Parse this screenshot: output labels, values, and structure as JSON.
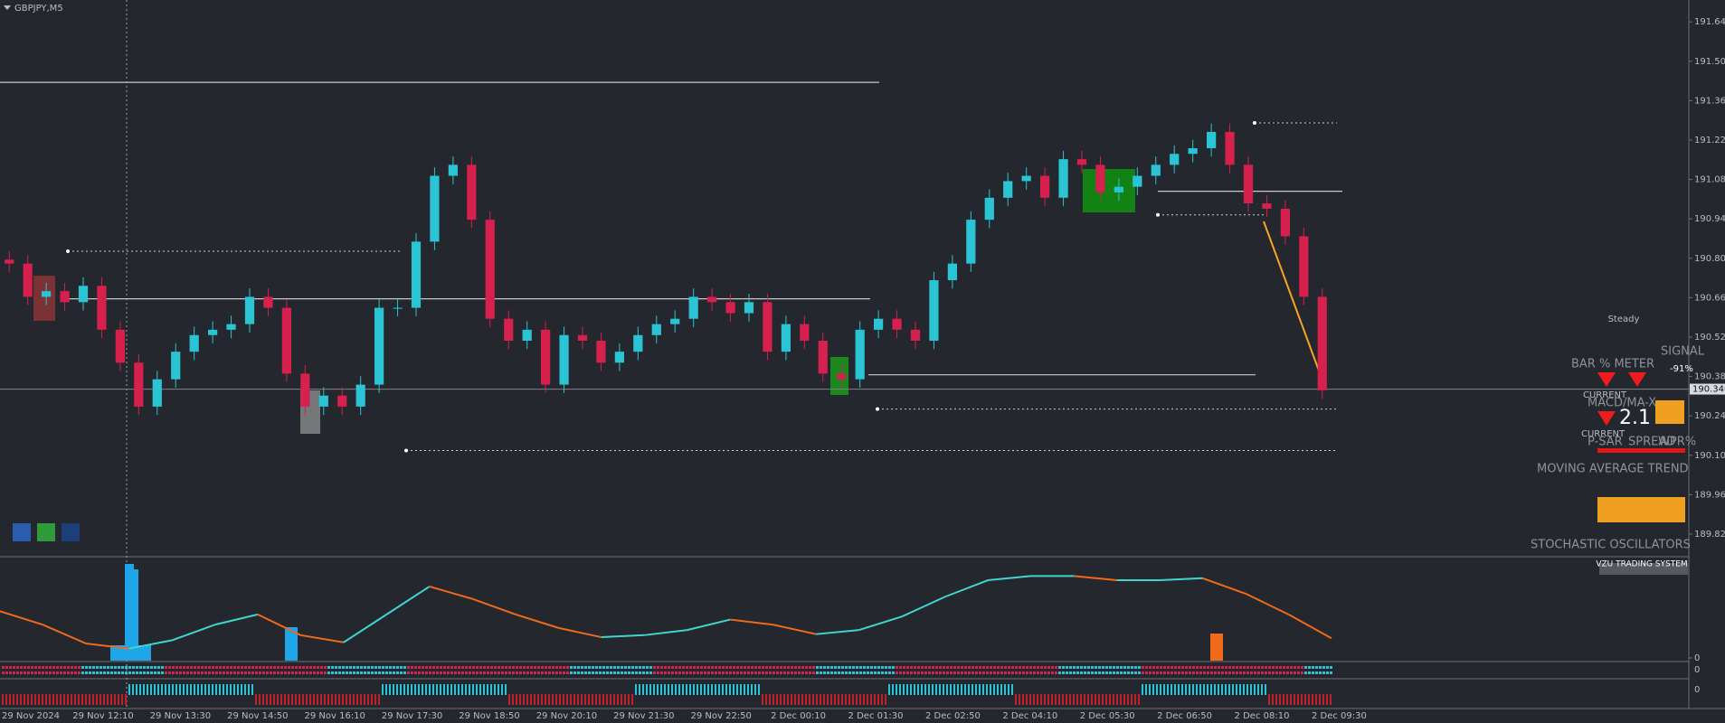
{
  "chart_data": {
    "type": "candlestick",
    "title": "GBPJPY,M5",
    "up_color": "#2bc4d4",
    "down_color": "#d6204e",
    "ylim": [
      189.751,
      191.711
    ],
    "yticks": [
      191.645,
      191.505,
      191.365,
      191.225,
      191.085,
      190.945,
      190.805,
      190.665,
      190.525,
      190.385,
      190.245,
      190.105,
      189.965,
      189.825
    ],
    "current_price": {
      "value": 190.34,
      "label": "190.340"
    },
    "levels": [
      191.43,
      190.661,
      190.391,
      191.043
    ],
    "dotted_levels": [
      190.83,
      190.122,
      190.269,
      191.286,
      190.959
    ],
    "candles": [
      [
        190.8,
        190.83,
        190.756,
        190.786
      ],
      [
        190.786,
        190.816,
        190.638,
        190.668
      ],
      [
        190.668,
        190.718,
        190.638,
        190.688
      ],
      [
        190.688,
        190.718,
        190.619,
        190.649
      ],
      [
        190.649,
        190.737,
        190.619,
        190.707
      ],
      [
        190.707,
        190.737,
        190.521,
        190.551
      ],
      [
        190.551,
        190.581,
        190.404,
        190.434
      ],
      [
        190.434,
        190.464,
        190.248,
        190.278
      ],
      [
        190.278,
        190.405,
        190.248,
        190.375
      ],
      [
        190.375,
        190.503,
        190.345,
        190.473
      ],
      [
        190.473,
        190.562,
        190.443,
        190.532
      ],
      [
        190.532,
        190.581,
        190.502,
        190.551
      ],
      [
        190.551,
        190.601,
        190.521,
        190.571
      ],
      [
        190.571,
        190.698,
        190.541,
        190.668
      ],
      [
        190.668,
        190.698,
        190.599,
        190.629
      ],
      [
        190.629,
        190.659,
        190.365,
        190.395
      ],
      [
        190.395,
        190.425,
        190.248,
        190.278
      ],
      [
        190.278,
        190.347,
        190.248,
        190.317
      ],
      [
        190.317,
        190.347,
        190.248,
        190.278
      ],
      [
        190.278,
        190.386,
        190.248,
        190.356
      ],
      [
        190.356,
        190.659,
        190.326,
        190.629
      ],
      [
        190.629,
        190.659,
        190.599,
        190.629
      ],
      [
        190.629,
        190.894,
        190.599,
        190.864
      ],
      [
        190.864,
        191.128,
        190.834,
        191.098
      ],
      [
        191.098,
        191.167,
        191.068,
        191.137
      ],
      [
        191.137,
        191.167,
        190.912,
        190.942
      ],
      [
        190.942,
        190.972,
        190.56,
        190.59
      ],
      [
        190.59,
        190.62,
        190.482,
        190.512
      ],
      [
        190.512,
        190.581,
        190.482,
        190.551
      ],
      [
        190.551,
        190.581,
        190.326,
        190.356
      ],
      [
        190.356,
        190.562,
        190.326,
        190.532
      ],
      [
        190.532,
        190.562,
        190.482,
        190.512
      ],
      [
        190.512,
        190.542,
        190.404,
        190.434
      ],
      [
        190.434,
        190.503,
        190.404,
        190.473
      ],
      [
        190.473,
        190.562,
        190.443,
        190.532
      ],
      [
        190.532,
        190.601,
        190.502,
        190.571
      ],
      [
        190.571,
        190.62,
        190.541,
        190.59
      ],
      [
        190.59,
        190.698,
        190.56,
        190.668
      ],
      [
        190.668,
        190.698,
        190.619,
        190.649
      ],
      [
        190.649,
        190.679,
        190.58,
        190.61
      ],
      [
        190.61,
        190.679,
        190.58,
        190.649
      ],
      [
        190.649,
        190.679,
        190.443,
        190.473
      ],
      [
        190.473,
        190.601,
        190.443,
        190.571
      ],
      [
        190.571,
        190.601,
        190.482,
        190.512
      ],
      [
        190.512,
        190.542,
        190.365,
        190.395
      ],
      [
        190.395,
        190.425,
        190.345,
        190.375
      ],
      [
        190.375,
        190.581,
        190.345,
        190.551
      ],
      [
        190.551,
        190.62,
        190.521,
        190.59
      ],
      [
        190.59,
        190.62,
        190.521,
        190.551
      ],
      [
        190.551,
        190.581,
        190.482,
        190.512
      ],
      [
        190.512,
        190.757,
        190.482,
        190.727
      ],
      [
        190.727,
        190.816,
        190.697,
        190.786
      ],
      [
        190.786,
        190.972,
        190.756,
        190.942
      ],
      [
        190.942,
        191.05,
        190.912,
        191.02
      ],
      [
        191.02,
        191.109,
        190.99,
        191.079
      ],
      [
        191.079,
        191.128,
        191.049,
        191.098
      ],
      [
        191.098,
        191.128,
        190.99,
        191.02
      ],
      [
        191.02,
        191.187,
        190.99,
        191.157
      ],
      [
        191.157,
        191.187,
        191.107,
        191.137
      ],
      [
        191.137,
        191.167,
        191.009,
        191.039
      ],
      [
        191.039,
        191.089,
        191.009,
        191.059
      ],
      [
        191.059,
        191.128,
        191.029,
        191.098
      ],
      [
        191.098,
        191.167,
        191.068,
        191.137
      ],
      [
        191.137,
        191.206,
        191.107,
        191.176
      ],
      [
        191.176,
        191.226,
        191.146,
        191.196
      ],
      [
        191.196,
        191.284,
        191.166,
        191.254
      ],
      [
        191.254,
        191.284,
        191.107,
        191.137
      ],
      [
        191.137,
        191.167,
        190.97,
        191.0
      ],
      [
        191.0,
        191.03,
        190.951,
        190.981
      ],
      [
        190.981,
        191.011,
        190.853,
        190.883
      ],
      [
        190.883,
        190.913,
        190.638,
        190.668
      ],
      [
        190.668,
        190.698,
        190.306,
        190.336
      ]
    ],
    "time_labels": [
      "29 Nov 2024",
      "29 Nov 12:10",
      "29 Nov 13:30",
      "29 Nov 14:50",
      "29 Nov 16:10",
      "29 Nov 17:30",
      "29 Nov 18:50",
      "29 Nov 20:10",
      "29 Nov 21:30",
      "29 Nov 22:50",
      "2 Dec 00:10",
      "2 Dec 01:30",
      "2 Dec 02:50",
      "2 Dec 04:10",
      "2 Dec 05:30",
      "2 Dec 06:50",
      "2 Dec 08:10",
      "2 Dec 09:30"
    ],
    "oscillator": {
      "ylim": [
        0,
        100
      ],
      "yticks": [
        0
      ],
      "rise_color": "#3fd6d0",
      "fall_color": "#f06a1a",
      "values": [
        50.6,
        36.0,
        15.7,
        10.1,
        19.1,
        36.0,
        47.2,
        24.7,
        16.9,
        47.2,
        77.5,
        64.0,
        47.2,
        32.6,
        22.5,
        24.7,
        30.3,
        41.6,
        36.0,
        25.8,
        30.3,
        44.9,
        66.3,
        84.3,
        88.8,
        88.8,
        84.3,
        84.3,
        86.5,
        69.7,
        47.2,
        21.3
      ]
    },
    "strip_labels": [
      "0",
      "0"
    ]
  },
  "panel": {
    "status": "Steady",
    "bar_meter": "BAR % METER",
    "signal": "SIGNAL",
    "signal_value": "-91%",
    "macd": "MACD/MA-X",
    "spread_value": "2.1",
    "current": "CURRENT",
    "psar": "P-SAR",
    "spread": "SPREAD",
    "wpr": "WPR%",
    "ma_trend": "MOVING AVERAGE TREND",
    "stochastic": "STOCHASTIC OSCILLATORS",
    "system": "VZU TRADING SYSTEM"
  }
}
